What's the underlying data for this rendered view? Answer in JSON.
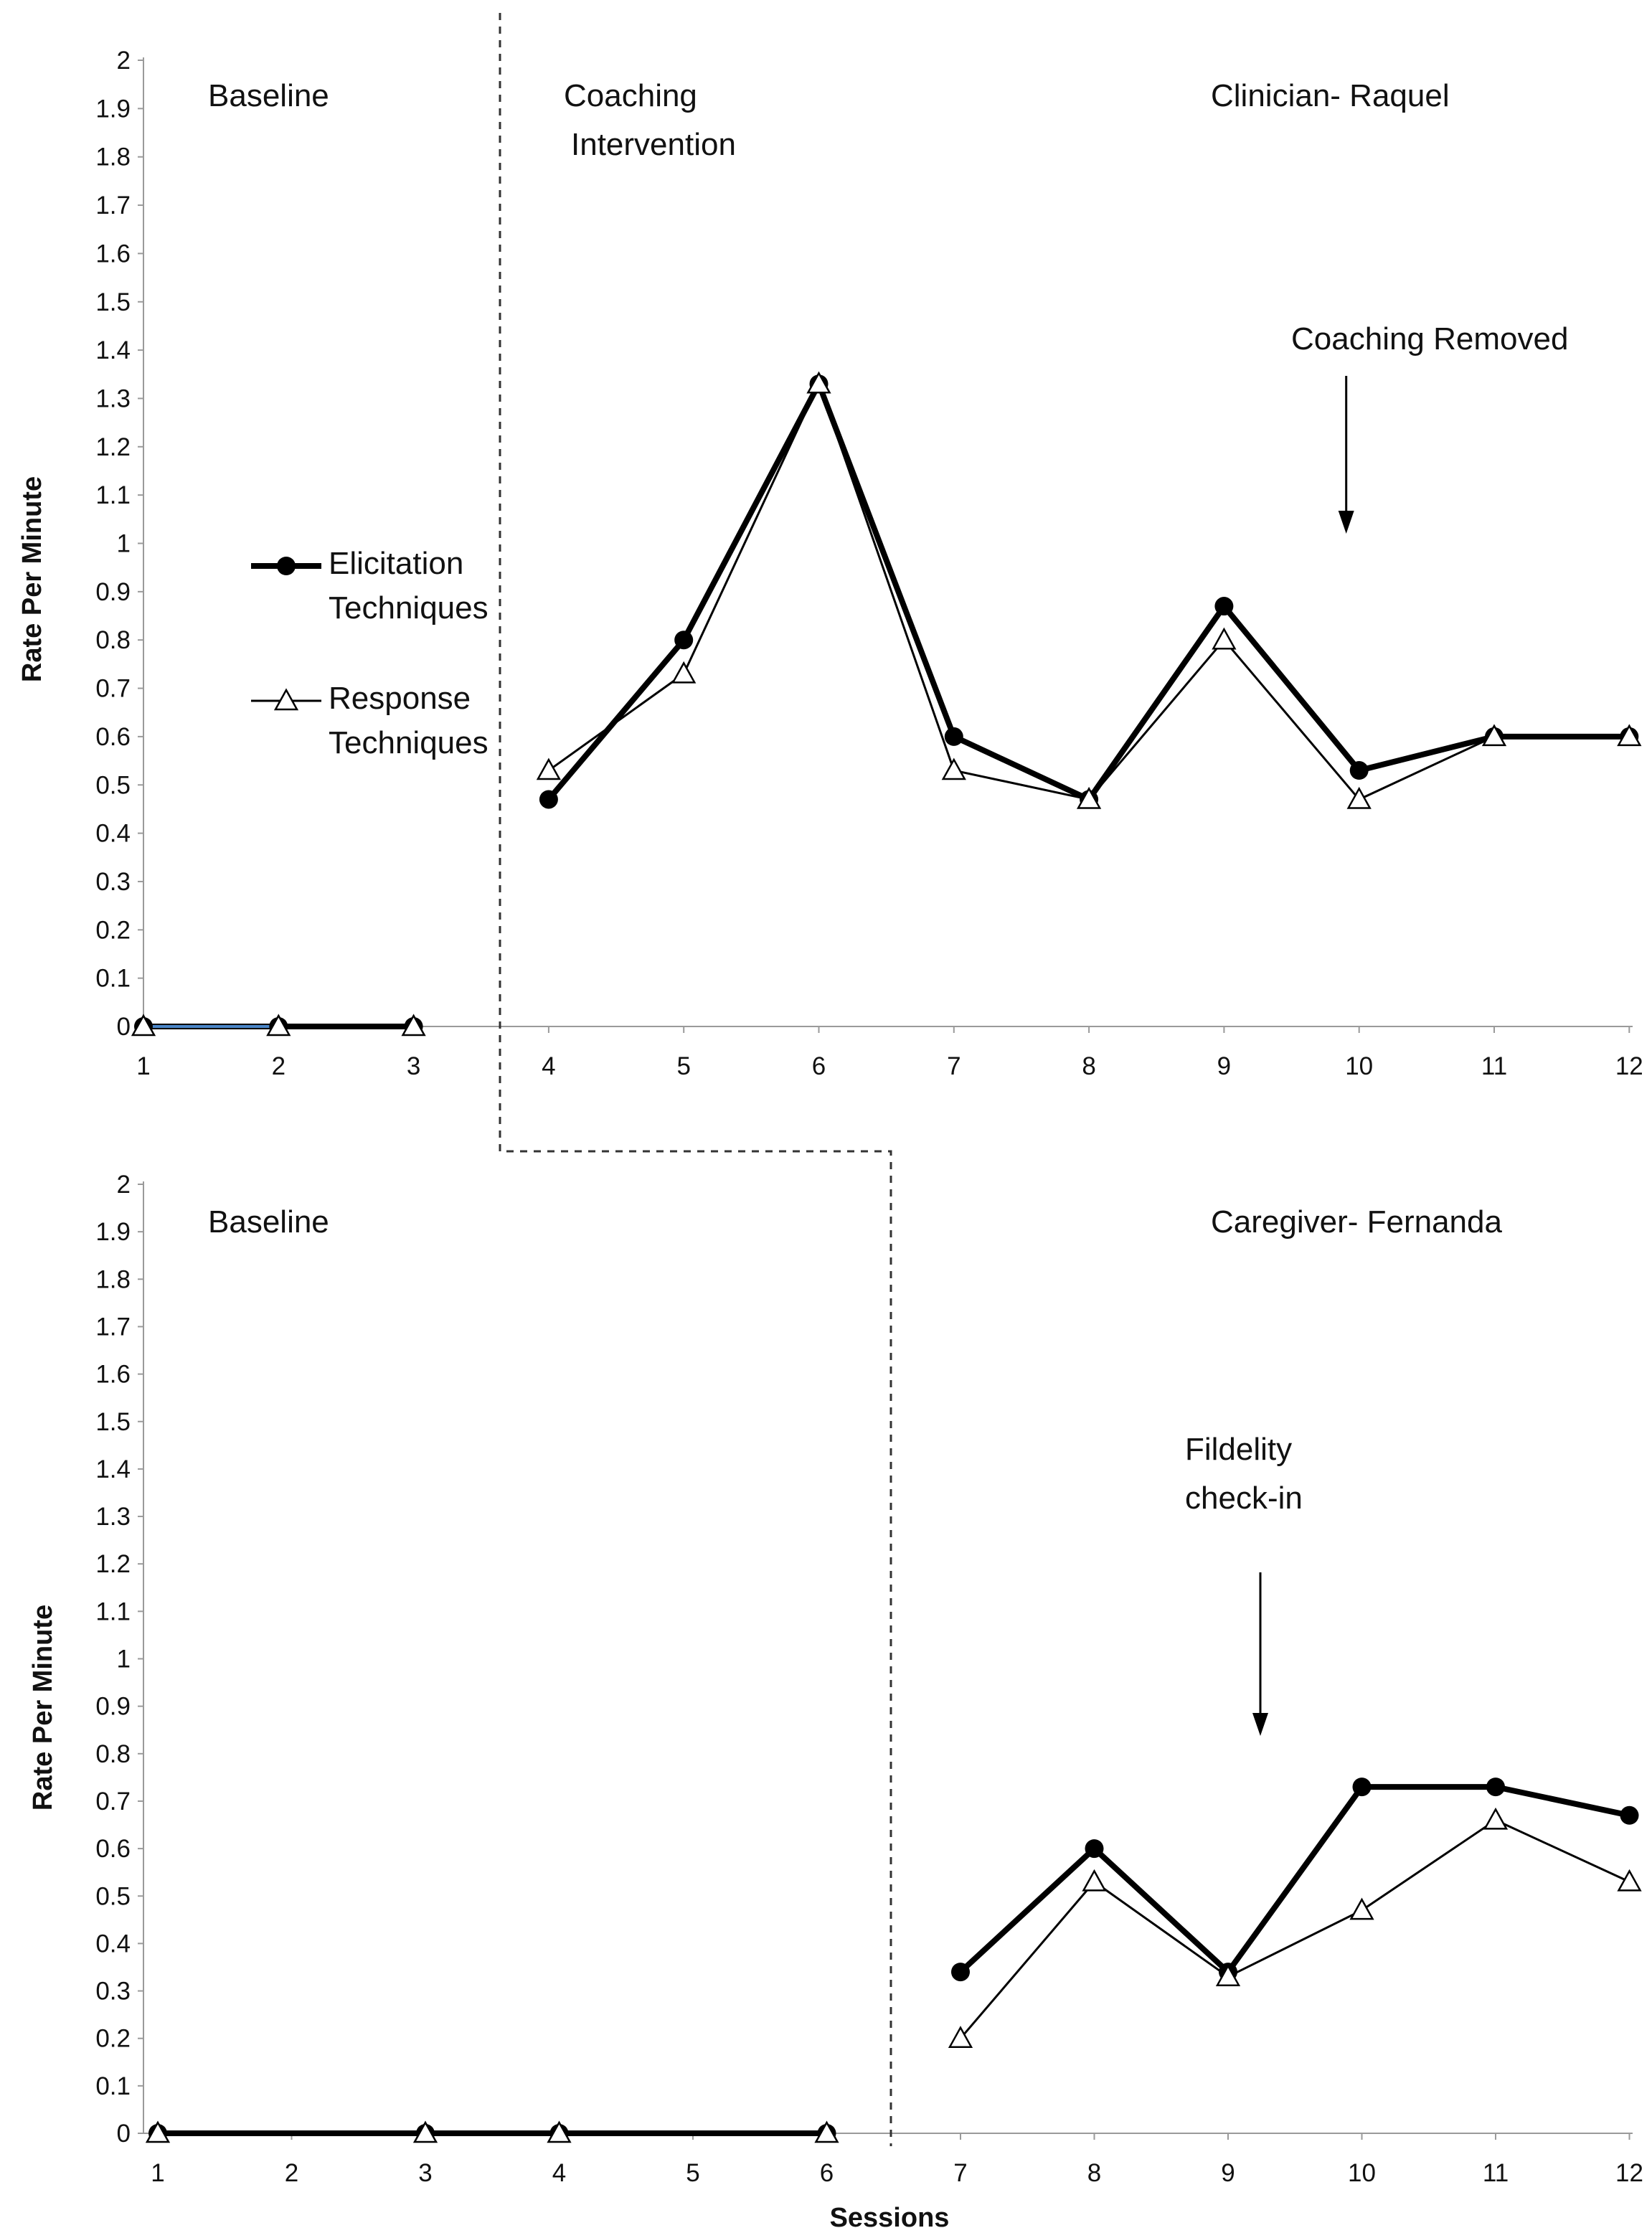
{
  "chart_data": [
    {
      "type": "line",
      "ylabel": "Rate Per Minute",
      "xlabel": "",
      "ylim": [
        0,
        2
      ],
      "y_ticks": [
        "0",
        "0.1",
        "0.2",
        "0.3",
        "0.4",
        "0.5",
        "0.6",
        "0.7",
        "0.8",
        "0.9",
        "1",
        "1.1",
        "1.2",
        "1.3",
        "1.4",
        "1.5",
        "1.6",
        "1.7",
        "1.8",
        "1.9",
        "2"
      ],
      "categories": [
        "1",
        "2",
        "3",
        "4",
        "5",
        "6",
        "7",
        "8",
        "9",
        "10",
        "11",
        "12"
      ],
      "series": [
        {
          "name": "Elicitation Techniques",
          "marker": "filled-circle",
          "x": [
            1,
            2,
            3,
            4,
            5,
            6,
            7,
            8,
            9,
            10,
            11,
            12
          ],
          "values": [
            0,
            0,
            0,
            0.47,
            0.8,
            1.33,
            0.6,
            0.47,
            0.87,
            0.53,
            0.6,
            0.6
          ]
        },
        {
          "name": "Response Techniques",
          "marker": "open-triangle",
          "x": [
            1,
            2,
            3,
            4,
            5,
            6,
            7,
            8,
            9,
            10,
            11,
            12
          ],
          "values": [
            0,
            0,
            0,
            0.53,
            0.73,
            1.33,
            0.53,
            0.47,
            0.8,
            0.47,
            0.6,
            0.6
          ]
        }
      ],
      "phase_labels": {
        "baseline": "Baseline",
        "intervention_line1": "Coaching",
        "intervention_line2": "Intervention",
        "participant": "Clinician- Raquel"
      },
      "annotation": {
        "text": "Coaching Removed",
        "at_session": 10
      },
      "legend": {
        "entry1_line1": "Elicitation",
        "entry1_line2": "Techniques",
        "entry2_line1": "Response",
        "entry2_line2": "Techniques"
      }
    },
    {
      "type": "line",
      "ylabel": "Rate Per Minute",
      "xlabel": "Sessions",
      "ylim": [
        0,
        2
      ],
      "y_ticks": [
        "0",
        "0.1",
        "0.2",
        "0.3",
        "0.4",
        "0.5",
        "0.6",
        "0.7",
        "0.8",
        "0.9",
        "1",
        "1.1",
        "1.2",
        "1.3",
        "1.4",
        "1.5",
        "1.6",
        "1.7",
        "1.8",
        "1.9",
        "2"
      ],
      "categories": [
        "1",
        "2",
        "3",
        "4",
        "5",
        "6",
        "7",
        "8",
        "9",
        "10",
        "11",
        "12"
      ],
      "series": [
        {
          "name": "Elicitation Techniques",
          "marker": "filled-circle",
          "x": [
            1,
            3,
            4,
            6,
            7,
            8,
            9,
            10,
            11,
            12
          ],
          "values": [
            0,
            0,
            0,
            0,
            0.34,
            0.6,
            0.34,
            0.73,
            0.73,
            0.67
          ]
        },
        {
          "name": "Response Techniques",
          "marker": "open-triangle",
          "x": [
            1,
            3,
            4,
            6,
            7,
            8,
            9,
            10,
            11,
            12
          ],
          "values": [
            0,
            0,
            0,
            0,
            0.2,
            0.53,
            0.33,
            0.47,
            0.66,
            0.53
          ]
        }
      ],
      "phase_labels": {
        "baseline": "Baseline",
        "participant": "Caregiver- Fernanda"
      },
      "annotation": {
        "text_line1": "Fildelity",
        "text_line2": "check-in",
        "at_session": 9.3
      }
    }
  ]
}
